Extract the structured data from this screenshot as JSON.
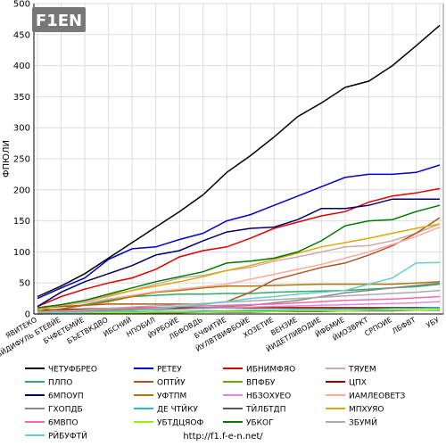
{
  "chart_data": {
    "type": "line",
    "ylabel": "ФПЮЛИ",
    "ylim": [
      0,
      500
    ],
    "y_ticks": [
      0,
      50,
      100,
      150,
      200,
      250,
      300,
      350,
      400,
      450,
      500
    ],
    "grid": true,
    "legend_position": "bottom",
    "categories": [
      "ЯВИТЕКО",
      "БЙДИФУЛЬ БТЕВЙЕ",
      "БЧФЕТБМЙЕ",
      "БЪЕТВКДВО",
      "ИБСНИЙ",
      "НПОБИЛ",
      "ЙУРБОЙЕ",
      "ЛБФОВДЬ",
      "БЧФИТЙЕ",
      "ЙУЛВТВИФБОЙЕ",
      "ХОЗЕТИЕ",
      "ВЕНЗИЕ",
      "ЙИДЕТЛИВОДИЕ",
      "ЙФБМИЕ",
      "ЙИОЗВРКТ",
      "СРПОИЕ",
      "ЛБФВТ",
      "УБУ"
    ],
    "series": [
      {
        "name": "ЧЕТУФБРЕО",
        "color": "#000000",
        "values": [
          28,
          45,
          65,
          90,
          115,
          140,
          165,
          192,
          228,
          255,
          285,
          318,
          340,
          365,
          375,
          400,
          432,
          465
        ]
      },
      {
        "name": "РЕТЕУ",
        "color": "#0000cc",
        "values": [
          25,
          42,
          58,
          88,
          105,
          108,
          120,
          130,
          150,
          160,
          175,
          190,
          205,
          220,
          225,
          225,
          228,
          240
        ]
      },
      {
        "name": "ИБНИМФЯО",
        "color": "#dd0000",
        "values": [
          12,
          28,
          40,
          50,
          58,
          72,
          92,
          102,
          108,
          122,
          138,
          148,
          158,
          165,
          180,
          190,
          195,
          202
        ]
      },
      {
        "name": "ТЯУЕМ",
        "color": "#ccaaaa",
        "values": [
          8,
          12,
          20,
          28,
          38,
          48,
          58,
          62,
          70,
          75,
          85,
          92,
          100,
          108,
          110,
          118,
          130,
          145
        ]
      },
      {
        "name": "ПЛПО",
        "color": "#33aa66",
        "values": [
          5,
          8,
          15,
          22,
          28,
          30,
          32,
          32,
          33,
          33,
          35,
          36,
          37,
          38,
          40,
          42,
          44,
          48
        ]
      },
      {
        "name": "ОПТЙУ",
        "color": "#aa5522",
        "values": [
          10,
          12,
          14,
          16,
          16,
          16,
          16,
          16,
          20,
          35,
          55,
          65,
          75,
          82,
          95,
          110,
          130,
          155
        ]
      },
      {
        "name": "ВПФБУ",
        "color": "#66aa00",
        "values": [
          4,
          5,
          6,
          7,
          8,
          8,
          9,
          9,
          10,
          10,
          10,
          10,
          10,
          10,
          10,
          10,
          10,
          10
        ]
      },
      {
        "name": "ЦПХ",
        "color": "#990000",
        "values": [
          6,
          7,
          8,
          9,
          10,
          10,
          10,
          10,
          10,
          10,
          10,
          10,
          10,
          10,
          10,
          10,
          10,
          10
        ]
      },
      {
        "name": "6МПОУП",
        "color": "#000066",
        "values": [
          12,
          35,
          52,
          65,
          78,
          95,
          102,
          118,
          132,
          138,
          140,
          152,
          170,
          170,
          175,
          185,
          185,
          185
        ]
      },
      {
        "name": "УФТПМ",
        "color": "#aa7700",
        "values": [
          3,
          8,
          14,
          20,
          28,
          35,
          38,
          42,
          45,
          45,
          46,
          47,
          48,
          48,
          48,
          48,
          50,
          52
        ]
      },
      {
        "name": "НБЗОХУЕО",
        "color": "#dd88dd",
        "values": [
          2,
          3,
          4,
          5,
          6,
          7,
          8,
          9,
          10,
          11,
          12,
          13,
          14,
          15,
          16,
          17,
          18,
          20
        ]
      },
      {
        "name": "ИАМЛЕОВЕТЗ",
        "color": "#ffaa99",
        "values": [
          10,
          14,
          18,
          24,
          30,
          36,
          40,
          44,
          48,
          56,
          64,
          72,
          80,
          90,
          100,
          112,
          125,
          140
        ]
      },
      {
        "name": "ГХОПДБ",
        "color": "#888888",
        "values": [
          2,
          3,
          4,
          5,
          6,
          7,
          8,
          10,
          12,
          14,
          18,
          22,
          28,
          34,
          38,
          42,
          46,
          50
        ]
      },
      {
        "name": "ДЕ ЧТЙКУ",
        "color": "#22bbcc",
        "values": [
          1,
          2,
          2,
          3,
          3,
          4,
          4,
          5,
          5,
          6,
          6,
          7,
          7,
          8,
          8,
          9,
          9,
          10
        ]
      },
      {
        "name": "ТЙЛБТДП",
        "color": "#555555",
        "values": [
          0,
          1,
          1,
          1,
          2,
          2,
          2,
          3,
          3,
          3,
          4,
          4,
          4,
          5,
          5,
          5,
          6,
          6
        ]
      },
      {
        "name": "МПХУЯО",
        "color": "#ddaa00",
        "values": [
          5,
          15,
          22,
          30,
          38,
          45,
          52,
          60,
          70,
          78,
          88,
          98,
          108,
          115,
          122,
          130,
          138,
          145
        ]
      },
      {
        "name": "6МВПО",
        "color": "#ff66aa",
        "values": [
          2,
          4,
          6,
          8,
          9,
          10,
          12,
          13,
          14,
          15,
          16,
          18,
          20,
          22,
          23,
          24,
          26,
          28
        ]
      },
      {
        "name": "УБТДЦЯОФ",
        "color": "#99ee00",
        "values": [
          1,
          1,
          2,
          2,
          2,
          3,
          3,
          3,
          4,
          4,
          4,
          5,
          5,
          5,
          6,
          6,
          6,
          7
        ]
      },
      {
        "name": "УБКОГ",
        "color": "#007700",
        "values": [
          10,
          15,
          22,
          32,
          42,
          52,
          60,
          68,
          82,
          85,
          90,
          100,
          118,
          142,
          150,
          152,
          165,
          175
        ]
      },
      {
        "name": "ЗБУМЙ",
        "color": "#aaaaaa",
        "values": [
          3,
          5,
          7,
          9,
          11,
          13,
          15,
          17,
          19,
          21,
          23,
          25,
          27,
          29,
          31,
          33,
          35,
          38
        ]
      },
      {
        "name": "РЙБУФТЙ",
        "color": "#66cccc",
        "values": [
          1,
          2,
          3,
          4,
          5,
          8,
          12,
          15,
          20,
          25,
          28,
          32,
          35,
          38,
          48,
          58,
          82,
          83
        ]
      }
    ]
  },
  "logo_text": "F1EN",
  "source_url": "http://f1.f-e-n.net/"
}
